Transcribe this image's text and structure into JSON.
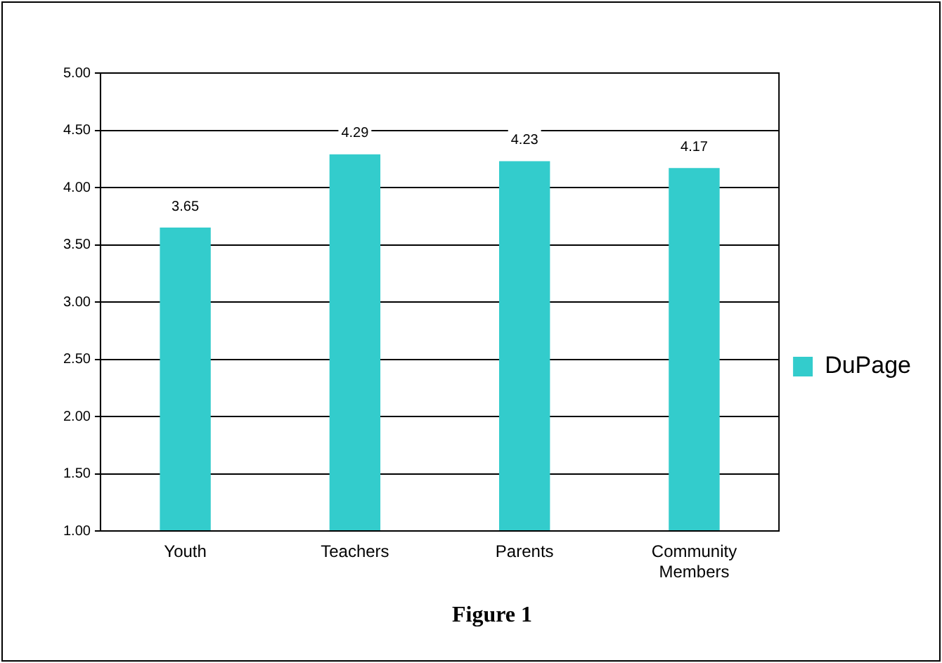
{
  "chart_data": {
    "type": "bar",
    "title": "Figure 1",
    "categories": [
      "Youth",
      "Teachers",
      "Parents",
      "Community Members"
    ],
    "series": [
      {
        "name": "DuPage",
        "color": "#33cccc",
        "values": [
          3.65,
          4.29,
          4.23,
          4.17
        ]
      }
    ],
    "ylim": [
      1,
      5
    ],
    "yticks": [
      {
        "value": 1,
        "label": "1.00"
      },
      {
        "value": 1.5,
        "label": "1.50"
      },
      {
        "value": 2,
        "label": "2.00"
      },
      {
        "value": 2.5,
        "label": "2.50"
      },
      {
        "value": 3,
        "label": "3.00"
      },
      {
        "value": 3.5,
        "label": "3.50"
      },
      {
        "value": 4,
        "label": "4.00"
      },
      {
        "value": 4.5,
        "label": "4.50"
      },
      {
        "value": 5,
        "label": "5.00"
      }
    ],
    "grid": "y",
    "legend": "right",
    "data_labels": true
  }
}
